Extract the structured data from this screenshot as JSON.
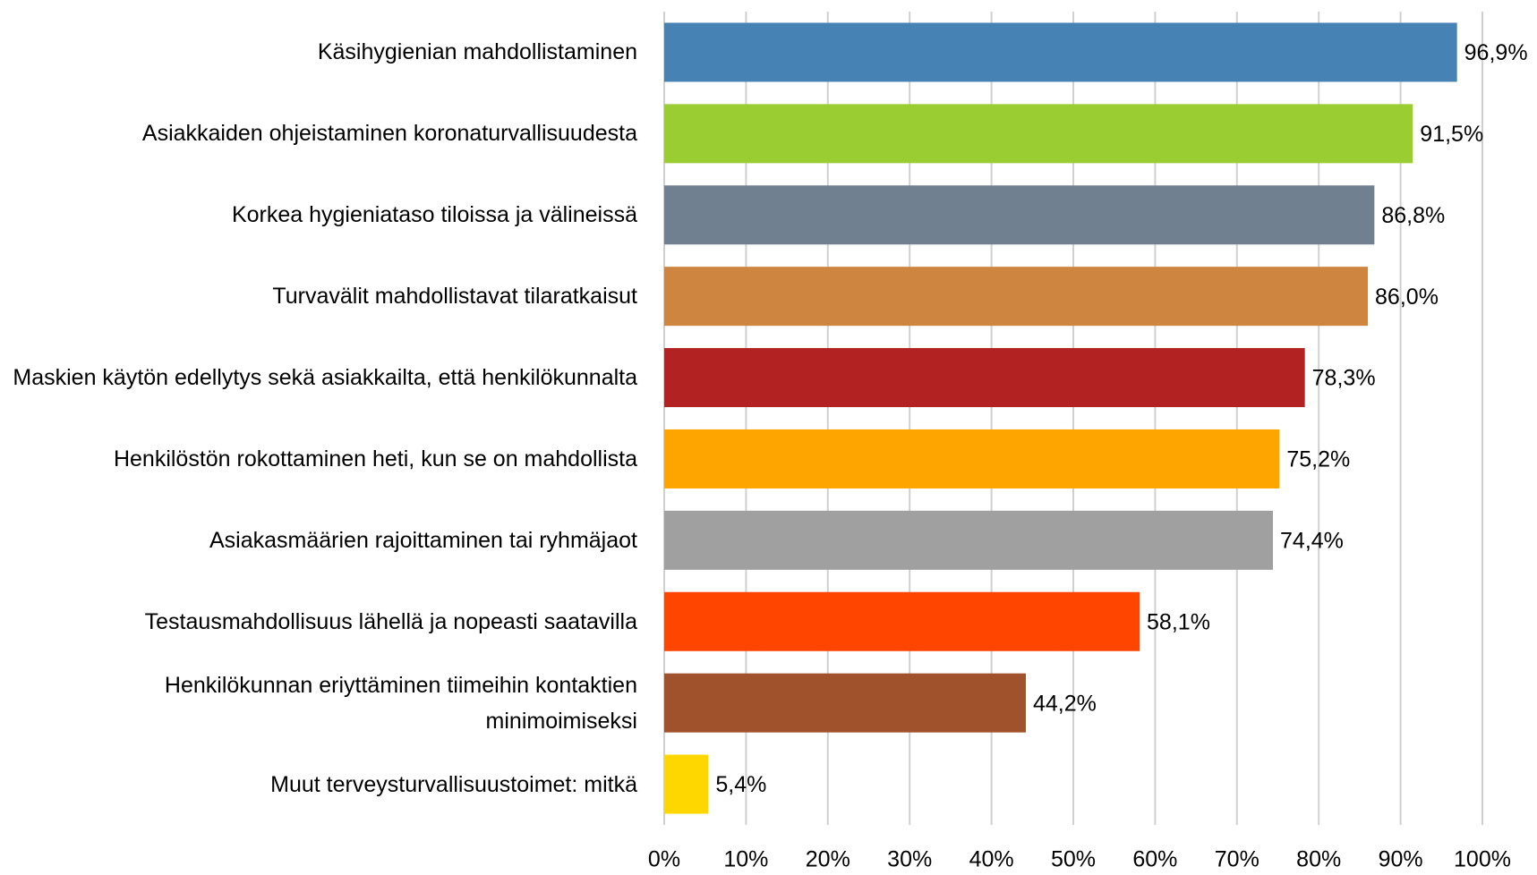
{
  "chart_data": {
    "type": "hbar",
    "categories": [
      "Käsihygienian mahdollistaminen",
      "Asiakkaiden ohjeistaminen koronaturvallisuudesta",
      "Korkea hygieniataso tiloissa ja välineissä",
      "Turvavälit mahdollistavat tilaratkaisut",
      "Maskien käytön edellytys sekä asiakkailta, että henkilökunnalta",
      "Henkilöstön rokottaminen heti, kun se on mahdollista",
      "Asiakasmäärien rajoittaminen tai ryhmäjaot",
      "Testausmahdollisuus lähellä ja nopeasti saatavilla",
      "Henkilökunnan eriyttäminen tiimeihin kontaktien minimoimiseksi",
      "Muut terveysturvallisuustoimet: mitkä"
    ],
    "values": [
      96.9,
      91.5,
      86.8,
      86.0,
      78.3,
      75.2,
      74.4,
      58.1,
      44.2,
      5.4
    ],
    "value_labels": [
      "96,9%",
      "91,5%",
      "86,8%",
      "86,0%",
      "78,3%",
      "75,2%",
      "74,4%",
      "58,1%",
      "44,2%",
      "5,4%"
    ],
    "colors": [
      "#4682b4",
      "#9acd32",
      "#708090",
      "#cd853f",
      "#b22222",
      "#ffa500",
      "#a0a0a0",
      "#ff4500",
      "#a0522d",
      "#ffd700"
    ],
    "xlim": [
      0,
      100
    ],
    "xticks": [
      {
        "value": 0,
        "label": "0%"
      },
      {
        "value": 10,
        "label": "10%"
      },
      {
        "value": 20,
        "label": "20%"
      },
      {
        "value": 30,
        "label": "30%"
      },
      {
        "value": 40,
        "label": "40%"
      },
      {
        "value": 50,
        "label": "50%"
      },
      {
        "value": 60,
        "label": "60%"
      },
      {
        "value": 70,
        "label": "70%"
      },
      {
        "value": 80,
        "label": "80%"
      },
      {
        "value": 90,
        "label": "90%"
      },
      {
        "value": 100,
        "label": "100%"
      }
    ],
    "grid": true
  }
}
